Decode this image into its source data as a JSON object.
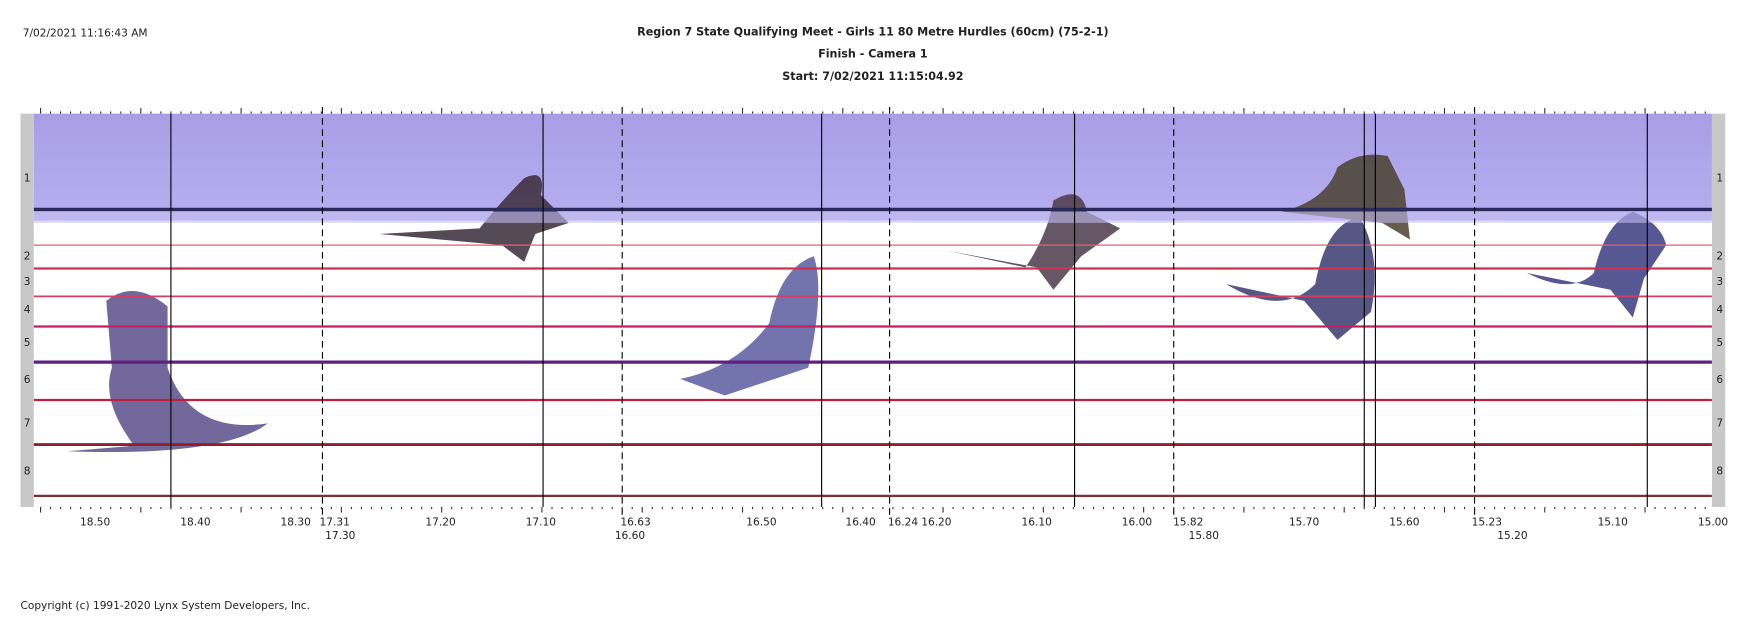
{
  "header": {
    "timestamp": "7/02/2021 11:16:43 AM",
    "title": "Region 7 State Qualifying Meet - Girls 11 80 Metre Hurdles (60cm) (75-2-1)",
    "subtitle": "Finish - Camera 1",
    "start": "Start: 7/02/2021 11:15:04.92"
  },
  "lanes": [
    "1",
    "2",
    "3",
    "4",
    "5",
    "6",
    "7",
    "8"
  ],
  "time_scale": {
    "labels": [
      "18.50",
      "18.40",
      "18.30",
      "17.31",
      "17.20",
      "17.10",
      "16.63",
      "16.50",
      "16.40",
      "16.24",
      "16.20",
      "16.10",
      "16.00",
      "15.82",
      "15.70",
      "15.60",
      "15.23",
      "15.10",
      "15.00"
    ],
    "sublabels": [
      "17.30",
      "16.60",
      "15.80",
      "15.20"
    ]
  },
  "footer": {
    "copyright": "Copyright (c) 1991-2020 Lynx System Developers, Inc."
  }
}
